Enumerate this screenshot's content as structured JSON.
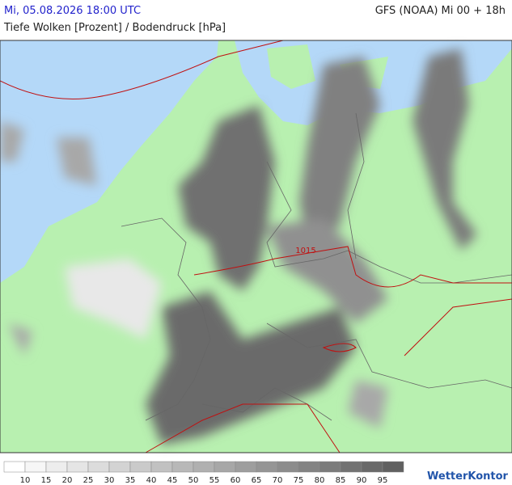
{
  "header": {
    "datetime": "Mi, 05.08.2026 18:00 UTC",
    "model": "GFS (NOAA) Mi 00 + 18h",
    "title": "Tiefe Wolken [Prozent] / Bodendruck [hPa]"
  },
  "map": {
    "isobar_label": "1015"
  },
  "legend": {
    "labels": [
      "10",
      "15",
      "20",
      "25",
      "30",
      "35",
      "40",
      "45",
      "50",
      "55",
      "60",
      "65",
      "70",
      "75",
      "80",
      "85",
      "90",
      "95"
    ]
  },
  "logo": "WetterKontor"
}
